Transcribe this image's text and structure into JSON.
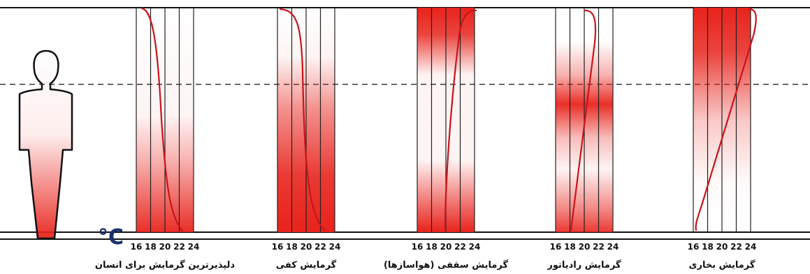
{
  "unit_symbol": "°C",
  "tick_labels": [
    "16",
    "18",
    "20",
    "22",
    "24"
  ],
  "colors": {
    "heat": "#e8231c",
    "curve": "#c8141b",
    "lines": "#111111",
    "unit": "#1a2f6e"
  },
  "panels": [
    {
      "id": "ideal",
      "caption": "دلپذیرترین گرمایش برای انسان",
      "profile": "ideal"
    },
    {
      "id": "floor",
      "caption": "گرمایش کفی",
      "profile": "floor"
    },
    {
      "id": "ceiling",
      "caption": "گرمایش سقفی (هواسازها)",
      "profile": "ceiling"
    },
    {
      "id": "radiator",
      "caption": "گرمایش رادیاتور",
      "profile": "radiator"
    },
    {
      "id": "steam",
      "caption": "گرمایش بخاری",
      "profile": "steam"
    }
  ],
  "figure": {
    "description_icon": "human-figure-icon"
  }
}
